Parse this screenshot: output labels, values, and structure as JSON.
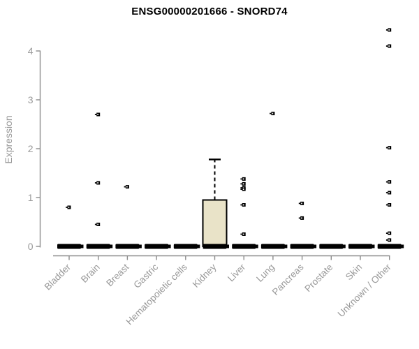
{
  "title": "ENSG00000201666 - SNORD74",
  "chart_data": {
    "type": "boxplot",
    "title": "ENSG00000201666 - SNORD74",
    "xlabel": "",
    "ylabel": "Expression",
    "ylim": [
      0,
      4.5
    ],
    "yticks": [
      0,
      1,
      2,
      3,
      4
    ],
    "grid": false,
    "legend": "none",
    "colors": {
      "box_fill": "#E9E3C8",
      "box_stroke": "#000000",
      "flat_bar": "#000000",
      "outlier": "#000000",
      "axis_line": "#8C8C8C",
      "tick_label": "#999999",
      "title": "#000000",
      "background": "#FFFFFF"
    },
    "categories": [
      "Bladder",
      "Brain",
      "Breast",
      "Gastric",
      "Hematopoietic cells",
      "Kidney",
      "Liver",
      "Lung",
      "Pancreas",
      "Prostate",
      "Skin",
      "Unknown / Other"
    ],
    "boxes": [
      {
        "category": "Bladder",
        "q1": 0,
        "median": 0,
        "q3": 0,
        "whisker_low": 0,
        "whisker_high": 0,
        "outliers": [
          0.8
        ]
      },
      {
        "category": "Brain",
        "q1": 0,
        "median": 0,
        "q3": 0,
        "whisker_low": 0,
        "whisker_high": 0,
        "outliers": [
          2.7,
          1.3,
          0.45
        ]
      },
      {
        "category": "Breast",
        "q1": 0,
        "median": 0,
        "q3": 0,
        "whisker_low": 0,
        "whisker_high": 0,
        "outliers": [
          1.22
        ]
      },
      {
        "category": "Gastric",
        "q1": 0,
        "median": 0,
        "q3": 0,
        "whisker_low": 0,
        "whisker_high": 0,
        "outliers": []
      },
      {
        "category": "Hematopoietic cells",
        "q1": 0,
        "median": 0,
        "q3": 0,
        "whisker_low": 0,
        "whisker_high": 0,
        "outliers": []
      },
      {
        "category": "Kidney",
        "q1": 0,
        "median": 0,
        "q3": 0.95,
        "whisker_low": 0,
        "whisker_high": 1.78,
        "outliers": []
      },
      {
        "category": "Liver",
        "q1": 0,
        "median": 0,
        "q3": 0,
        "whisker_low": 0,
        "whisker_high": 0,
        "outliers": [
          1.38,
          1.28,
          1.2,
          1.17,
          0.85,
          0.25
        ]
      },
      {
        "category": "Lung",
        "q1": 0,
        "median": 0,
        "q3": 0,
        "whisker_low": 0,
        "whisker_high": 0,
        "outliers": [
          2.72
        ]
      },
      {
        "category": "Pancreas",
        "q1": 0,
        "median": 0,
        "q3": 0,
        "whisker_low": 0,
        "whisker_high": 0,
        "outliers": [
          0.88,
          0.58
        ]
      },
      {
        "category": "Prostate",
        "q1": 0,
        "median": 0,
        "q3": 0,
        "whisker_low": 0,
        "whisker_high": 0,
        "outliers": []
      },
      {
        "category": "Skin",
        "q1": 0,
        "median": 0,
        "q3": 0,
        "whisker_low": 0,
        "whisker_high": 0,
        "outliers": []
      },
      {
        "category": "Unknown / Other",
        "q1": 0,
        "median": 0,
        "q3": 0,
        "whisker_low": 0,
        "whisker_high": 0,
        "outliers": [
          4.43,
          4.1,
          2.02,
          1.32,
          1.1,
          0.85,
          0.27,
          0.13
        ]
      }
    ]
  }
}
